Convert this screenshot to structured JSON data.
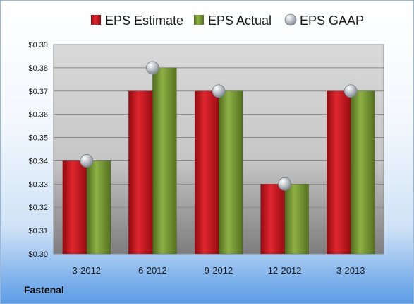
{
  "company": "Fastenal",
  "chart_data": {
    "type": "bar",
    "categories": [
      "3-2012",
      "6-2012",
      "9-2012",
      "12-2012",
      "3-2013"
    ],
    "series": [
      {
        "name": "EPS Estimate",
        "values": [
          0.34,
          0.37,
          0.37,
          0.33,
          0.37
        ],
        "color": "#c0141c",
        "mark": "bar"
      },
      {
        "name": "EPS Actual",
        "values": [
          0.34,
          0.38,
          0.37,
          0.33,
          0.37
        ],
        "color": "#6e8f2e",
        "mark": "bar"
      },
      {
        "name": "EPS GAAP",
        "values": [
          0.34,
          0.38,
          0.37,
          0.33,
          0.37
        ],
        "color": "#a8aeb6",
        "mark": "scatter"
      }
    ],
    "ylim": [
      0.3,
      0.39
    ],
    "yticks": [
      "$0.30",
      "$0.31",
      "$0.32",
      "$0.33",
      "$0.34",
      "$0.35",
      "$0.36",
      "$0.37",
      "$0.38",
      "$0.39"
    ],
    "grid": true,
    "legend": "top"
  }
}
